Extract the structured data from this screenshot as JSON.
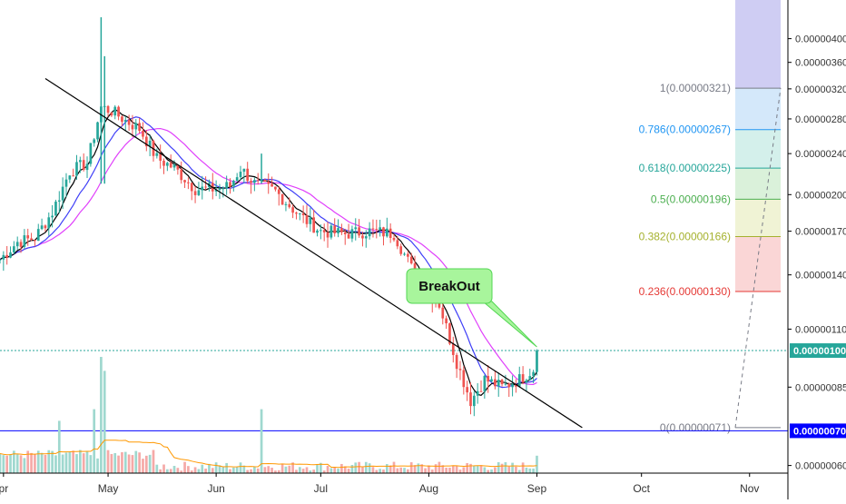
{
  "chart_data": {
    "type": "candlestick",
    "title": "",
    "x_axis": {
      "ticks": [
        {
          "label": "pr",
          "date": "2018-04-01"
        },
        {
          "label": "May",
          "date": "2018-05-01"
        },
        {
          "label": "Jun",
          "date": "2018-06-01"
        },
        {
          "label": "Jul",
          "date": "2018-07-01"
        },
        {
          "label": "Aug",
          "date": "2018-08-01"
        },
        {
          "label": "Sep",
          "date": "2018-09-01"
        },
        {
          "label": "Oct",
          "date": "2018-10-01"
        },
        {
          "label": "Nov",
          "date": "2018-11-01"
        }
      ],
      "range": [
        "2018-03-31",
        "2018-11-12"
      ]
    },
    "y_axis": {
      "scale": "log",
      "range": [
        5.8e-07,
        4.75e-06
      ],
      "ticks": [
        "0.00000060",
        "0.00000085",
        "0.00000110",
        "0.00000140",
        "0.00000170",
        "0.00000200",
        "0.00000240",
        "0.00000280",
        "0.00000320",
        "0.00000360",
        "0.00000400"
      ]
    },
    "price_path": [
      {
        "date": "2018-03-31",
        "price": 1.5e-06
      },
      {
        "date": "2018-04-05",
        "price": 1.62e-06
      },
      {
        "date": "2018-04-10",
        "price": 1.65e-06
      },
      {
        "date": "2018-04-15",
        "price": 1.85e-06
      },
      {
        "date": "2018-04-20",
        "price": 2.22e-06
      },
      {
        "date": "2018-04-25",
        "price": 2.3e-06
      },
      {
        "date": "2018-04-29",
        "price": 2.95e-06
      },
      {
        "date": "2018-05-02",
        "price": 2.9e-06
      },
      {
        "date": "2018-05-06",
        "price": 2.78e-06
      },
      {
        "date": "2018-05-10",
        "price": 2.68e-06
      },
      {
        "date": "2018-05-15",
        "price": 2.35e-06
      },
      {
        "date": "2018-05-20",
        "price": 2.25e-06
      },
      {
        "date": "2018-05-26",
        "price": 2.05e-06
      },
      {
        "date": "2018-06-01",
        "price": 2.05e-06
      },
      {
        "date": "2018-06-05",
        "price": 2.08e-06
      },
      {
        "date": "2018-06-08",
        "price": 2.25e-06
      },
      {
        "date": "2018-06-12",
        "price": 2.1e-06
      },
      {
        "date": "2018-06-18",
        "price": 2.03e-06
      },
      {
        "date": "2018-06-25",
        "price": 1.82e-06
      },
      {
        "date": "2018-07-01",
        "price": 1.7e-06
      },
      {
        "date": "2018-07-08",
        "price": 1.68e-06
      },
      {
        "date": "2018-07-15",
        "price": 1.7e-06
      },
      {
        "date": "2018-07-22",
        "price": 1.68e-06
      },
      {
        "date": "2018-07-28",
        "price": 1.4e-06
      },
      {
        "date": "2018-08-04",
        "price": 1.23e-06
      },
      {
        "date": "2018-08-09",
        "price": 9.5e-07
      },
      {
        "date": "2018-08-13",
        "price": 8e-07
      },
      {
        "date": "2018-08-17",
        "price": 8.8e-07
      },
      {
        "date": "2018-08-22",
        "price": 8.5e-07
      },
      {
        "date": "2018-08-27",
        "price": 8.8e-07
      },
      {
        "date": "2018-08-31",
        "price": 9.2e-07
      },
      {
        "date": "2018-09-01",
        "price": 1e-06
      }
    ],
    "volume_spikes": [
      {
        "date": "2018-04-17",
        "relative": 0.45
      },
      {
        "date": "2018-04-27",
        "relative": 0.55
      },
      {
        "date": "2018-04-29",
        "relative": 1.0
      },
      {
        "date": "2018-04-30",
        "relative": 0.88
      },
      {
        "date": "2018-06-14",
        "relative": 0.55
      },
      {
        "date": "2018-09-01",
        "relative": 0.15
      }
    ],
    "trendline": {
      "from": {
        "date": "2018-04-13",
        "price": 3.35e-06
      },
      "to": {
        "date": "2018-09-14",
        "price": 7.1e-07
      },
      "color": "#000000"
    },
    "fib_levels": [
      {
        "level": "1",
        "value": "0.00000321",
        "color": "#787b86",
        "fill": "#d9d9dc"
      },
      {
        "level": "0.786",
        "value": "0.00000267",
        "color": "#2196f3",
        "fill": "#cfe6f9"
      },
      {
        "level": "0.618",
        "value": "0.00000225",
        "color": "#26a69a",
        "fill": "#cfeee9"
      },
      {
        "level": "0.5",
        "value": "0.00000196",
        "color": "#4caf50",
        "fill": "#d6efd6"
      },
      {
        "level": "0.382",
        "value": "0.00000166",
        "color": "#a5b12e",
        "fill": "#eef2d0"
      },
      {
        "level": "0.236",
        "value": "0.00000130",
        "color": "#e53935",
        "fill": "#f9d2d2"
      },
      {
        "level": "0",
        "value": "0.00000071",
        "color": "#787b86",
        "fill": "#ffffff"
      }
    ],
    "fib_extension_fill": "#cfcdf3",
    "current_price": {
      "label": "0.00000100",
      "color": "#26a69a"
    },
    "support_line": {
      "label": "0.00000070",
      "color": "#0000ff"
    },
    "annotation": {
      "text": "BreakOut",
      "fill": "#a8f59c",
      "border": "#52d652"
    },
    "colors": {
      "up": "#26a69a",
      "down": "#ef5350",
      "ma_fast": "#000000",
      "ma_mid": "#3f3ff7",
      "ma_slow": "#e040fb",
      "volume_ma": "#ff9800"
    }
  }
}
